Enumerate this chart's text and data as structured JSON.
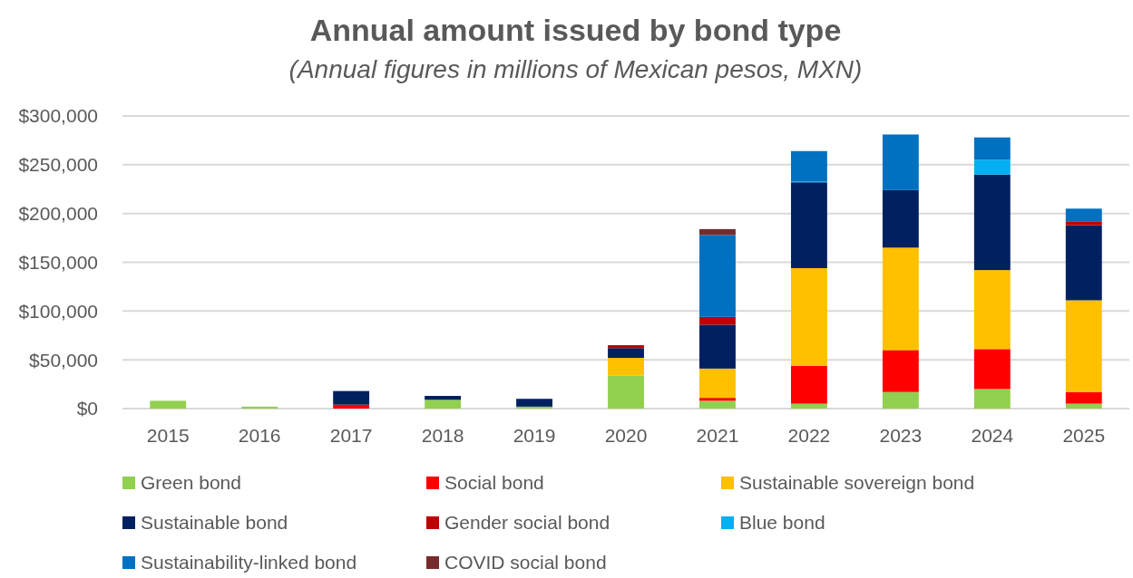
{
  "chart_data": {
    "type": "bar",
    "title": "Annual amount issued by bond type",
    "subtitle": "(Annual figures in millions of Mexican pesos, MXN)",
    "stacked": true,
    "categories": [
      "2015",
      "2016",
      "2017",
      "2018",
      "2019",
      "2020",
      "2021",
      "2022",
      "2023",
      "2024",
      "2025"
    ],
    "series": [
      {
        "name": "Green bond",
        "color": "#92d050",
        "values": [
          8000,
          2000,
          0,
          9000,
          2000,
          34000,
          8000,
          5000,
          17000,
          20000,
          5000
        ]
      },
      {
        "name": "Social bond",
        "color": "#ff0000",
        "values": [
          0,
          0,
          4000,
          0,
          0,
          0,
          3000,
          39000,
          43000,
          41000,
          12000
        ]
      },
      {
        "name": "Sustainable sovereign bond",
        "color": "#ffc000",
        "values": [
          0,
          0,
          0,
          0,
          0,
          18000,
          30000,
          100000,
          105000,
          81000,
          94000
        ]
      },
      {
        "name": "Sustainable bond",
        "color": "#002060",
        "values": [
          0,
          0,
          14000,
          4000,
          8000,
          10000,
          45000,
          88000,
          59000,
          98000,
          77000
        ]
      },
      {
        "name": "Gender social bond",
        "color": "#c00000",
        "values": [
          0,
          0,
          0,
          0,
          0,
          3000,
          8000,
          0,
          0,
          0,
          4000
        ]
      },
      {
        "name": "Blue bond",
        "color": "#00b0f0",
        "values": [
          0,
          0,
          0,
          0,
          0,
          0,
          0,
          1000,
          0,
          15000,
          0
        ]
      },
      {
        "name": "Sustainability-linked bond",
        "color": "#0070c0",
        "values": [
          0,
          0,
          0,
          0,
          0,
          0,
          84000,
          31000,
          57000,
          23000,
          13000
        ]
      },
      {
        "name": "COVID social bond",
        "color": "#772b2b",
        "values": [
          0,
          0,
          0,
          0,
          0,
          0,
          6000,
          0,
          0,
          0,
          0
        ]
      }
    ],
    "ylim": [
      0,
      300000
    ],
    "yticks": [
      {
        "value": 0,
        "label": "$0"
      },
      {
        "value": 50000,
        "label": "$50,000"
      },
      {
        "value": 100000,
        "label": "$100,000"
      },
      {
        "value": 150000,
        "label": "$150,000"
      },
      {
        "value": 200000,
        "label": "$200,000"
      },
      {
        "value": 250000,
        "label": "$250,000"
      },
      {
        "value": 300000,
        "label": "$300,000"
      }
    ],
    "grid": "y",
    "legend": "bottom"
  }
}
